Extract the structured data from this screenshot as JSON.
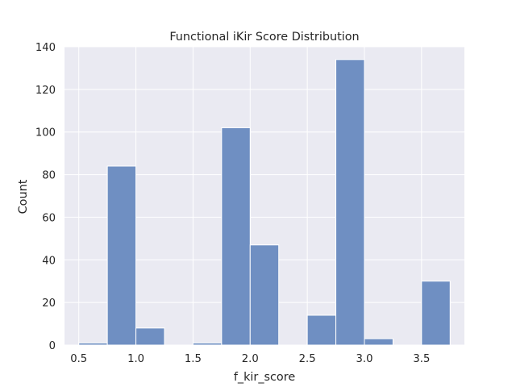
{
  "chart_data": {
    "type": "bar",
    "title": "Functional iKir Score Distribution",
    "xlabel": "f_kir_score",
    "ylabel": "Count",
    "xlim": [
      0.375,
      3.875
    ],
    "ylim": [
      0,
      140
    ],
    "xticks": [
      0.5,
      1.0,
      1.5,
      2.0,
      2.5,
      3.0,
      3.5
    ],
    "xtick_labels": [
      "0.5",
      "1.0",
      "1.5",
      "2.0",
      "2.5",
      "3.0",
      "3.5"
    ],
    "yticks": [
      0,
      20,
      40,
      60,
      80,
      100,
      120,
      140
    ],
    "ytick_labels": [
      "0",
      "20",
      "40",
      "60",
      "80",
      "100",
      "120",
      "140"
    ],
    "bin_width": 0.25,
    "bins": [
      {
        "start": 0.5,
        "count": 1
      },
      {
        "start": 0.75,
        "count": 84
      },
      {
        "start": 1.0,
        "count": 8
      },
      {
        "start": 1.25,
        "count": 0
      },
      {
        "start": 1.5,
        "count": 1
      },
      {
        "start": 1.75,
        "count": 102
      },
      {
        "start": 2.0,
        "count": 47
      },
      {
        "start": 2.25,
        "count": 0
      },
      {
        "start": 2.5,
        "count": 14
      },
      {
        "start": 2.75,
        "count": 134
      },
      {
        "start": 3.0,
        "count": 3
      },
      {
        "start": 3.25,
        "count": 0
      },
      {
        "start": 3.5,
        "count": 30
      }
    ],
    "grid": true,
    "background_color": "#eaeaf2",
    "grid_color": "#ffffff",
    "bar_color": "#6f8fc2",
    "bar_edge_color": "#ffffff"
  }
}
